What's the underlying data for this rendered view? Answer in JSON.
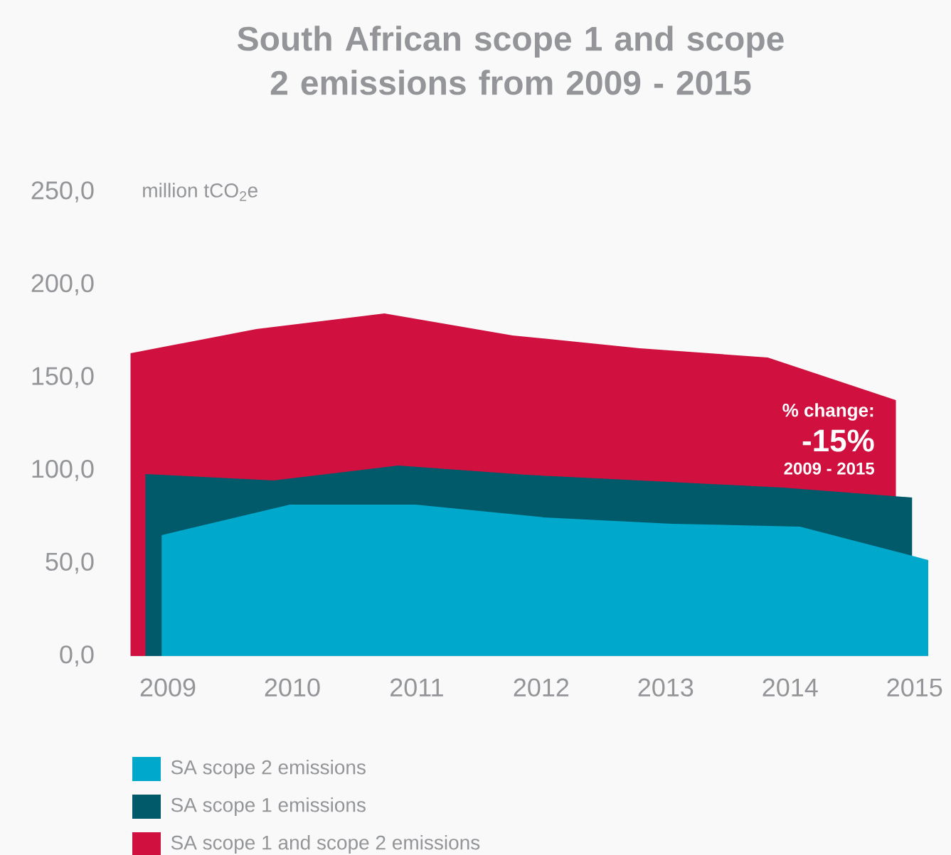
{
  "chart_data": {
    "type": "area",
    "title": "South African scope 1 and scope 2 emissions from 2009 - 2015",
    "ylabel": "million tCO$_{2}$e",
    "series": [
      {
        "name": "SA scope 1 and scope 2 emissions",
        "color": "#d0103f",
        "x": [
          2008.7,
          2009.71,
          2010.74,
          2011.77,
          2012.79,
          2013.82,
          2014.85
        ],
        "values": [
          163.1,
          176.1,
          184.5,
          172.7,
          165.8,
          160.8,
          137.8
        ]
      },
      {
        "name": "SA scope 1 emissions",
        "color": "#005a6a",
        "x": [
          2008.82,
          2009.85,
          2010.85,
          2011.88,
          2012.91,
          2013.94,
          2014.98
        ],
        "values": [
          98.0,
          94.6,
          102.6,
          97.6,
          94.2,
          90.7,
          85.4
        ]
      },
      {
        "name": "SA scope 2 emissions",
        "color": "#00a8cc",
        "x": [
          2008.95,
          2009.98,
          2010.99,
          2012.02,
          2013.05,
          2014.08,
          2015.11
        ],
        "values": [
          65.1,
          81.5,
          81.5,
          74.7,
          71.2,
          69.7,
          51.7
        ]
      }
    ],
    "xlim": [
      2008.7,
      2015.11
    ],
    "xticks": [
      2009,
      2010,
      2011,
      2012,
      2013,
      2014,
      2015
    ],
    "ylim": [
      0,
      250
    ],
    "yticks": [
      {
        "value": 0,
        "label": "0,0"
      },
      {
        "value": 50,
        "label": "50,0"
      },
      {
        "value": 100,
        "label": "100,0"
      },
      {
        "value": 150,
        "label": "150,0"
      },
      {
        "value": 200,
        "label": "200,0"
      },
      {
        "value": 250,
        "label": "250,0"
      }
    ],
    "grid": false,
    "legend": "bottom",
    "annotations": [
      "% change:",
      "-15%",
      "2009 - 2015"
    ]
  }
}
